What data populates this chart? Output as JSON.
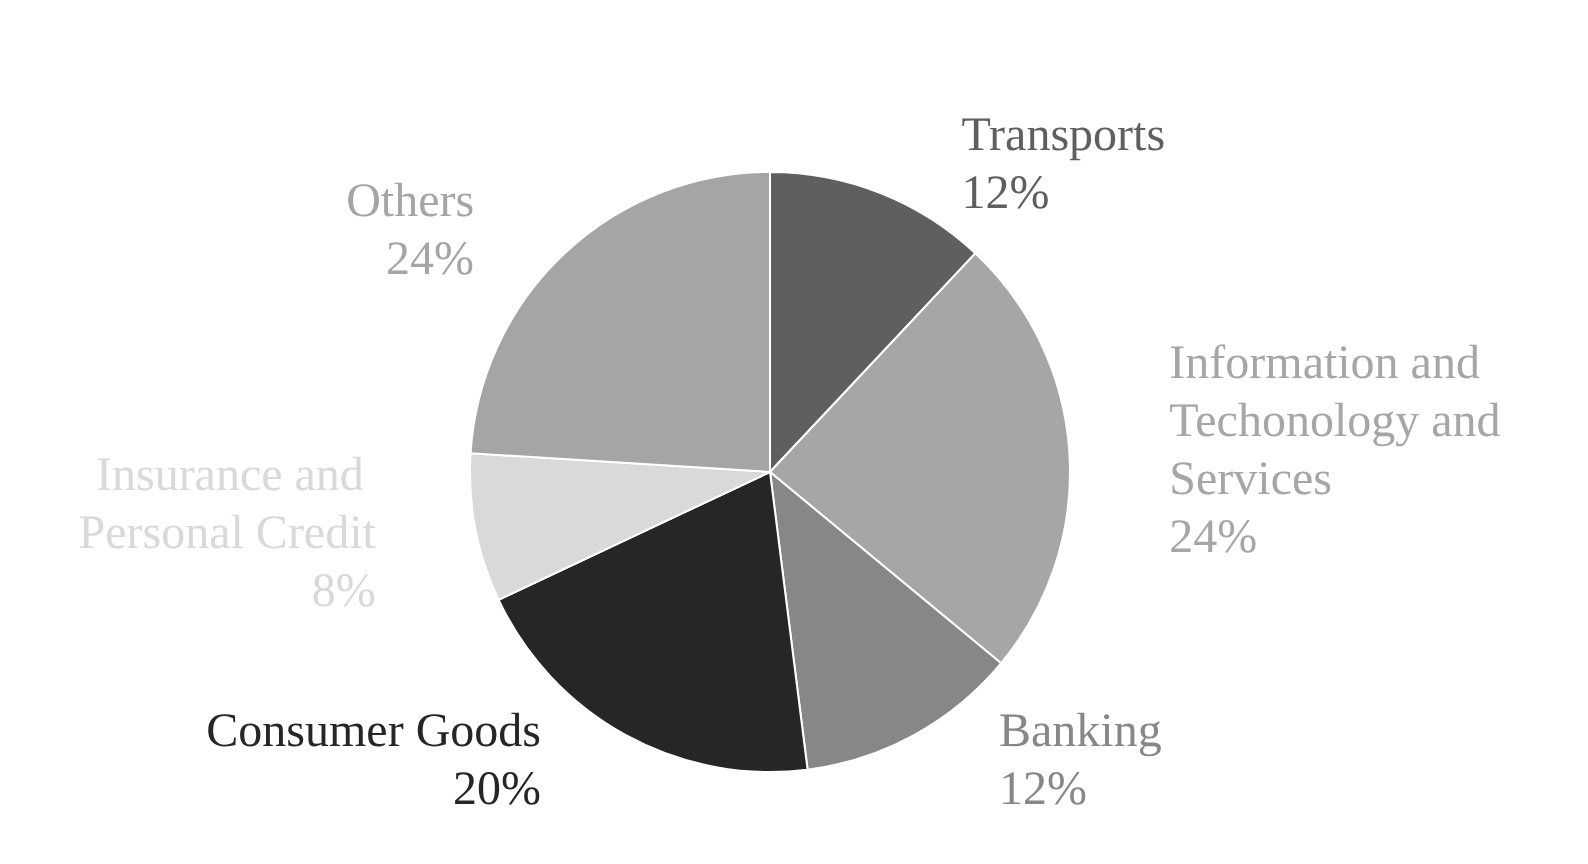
{
  "chart_data": {
    "type": "pie",
    "categories": [
      "Transports",
      "Information and Techonology and Services",
      "Banking",
      "Consumer Goods",
      "Insurance and Personal Credit",
      "Others"
    ],
    "values": [
      12,
      24,
      12,
      20,
      8,
      24
    ],
    "value_labels": [
      "12%",
      "24%",
      "12%",
      "20%",
      "8%",
      "24%"
    ],
    "colors": [
      "#5f5f5f",
      "#a6a6a6",
      "#878787",
      "#262626",
      "#d9d9d9",
      "#a5a5a5"
    ],
    "legend": false
  }
}
